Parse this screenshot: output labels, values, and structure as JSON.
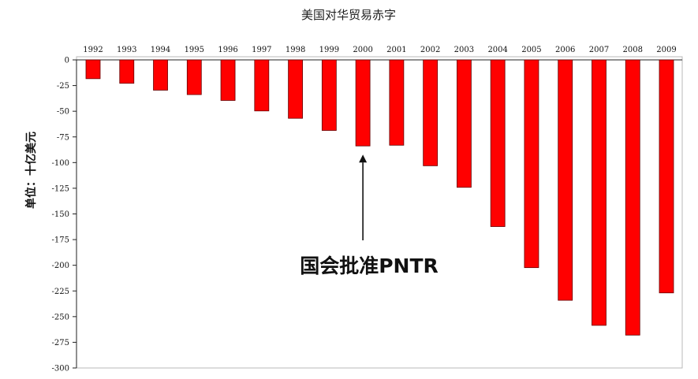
{
  "chart_data": {
    "type": "bar",
    "title": "美国对华贸易赤字",
    "xlabel": "",
    "ylabel": "单位：十亿美元",
    "categories": [
      "1992",
      "1993",
      "1994",
      "1995",
      "1996",
      "1997",
      "1998",
      "1999",
      "2000",
      "2001",
      "2002",
      "2003",
      "2004",
      "2005",
      "2006",
      "2007",
      "2008",
      "2009"
    ],
    "values": [
      -18.3,
      -22.8,
      -29.5,
      -33.8,
      -39.5,
      -49.7,
      -56.9,
      -68.7,
      -83.8,
      -83.1,
      -103.1,
      -124.1,
      -162.3,
      -202.3,
      -234.1,
      -258.5,
      -268.0,
      -226.9
    ],
    "ylim": [
      -300,
      0
    ],
    "yticks": [
      "0",
      "-25",
      "-50",
      "-75",
      "-100",
      "-125",
      "-150",
      "-175",
      "-200",
      "-225",
      "-250",
      "-275",
      "-300"
    ],
    "bar_color": "#ff0000",
    "annotation": {
      "text": "国会批准PNTR",
      "target_category": "2000"
    },
    "grid": false,
    "legend": "none"
  }
}
